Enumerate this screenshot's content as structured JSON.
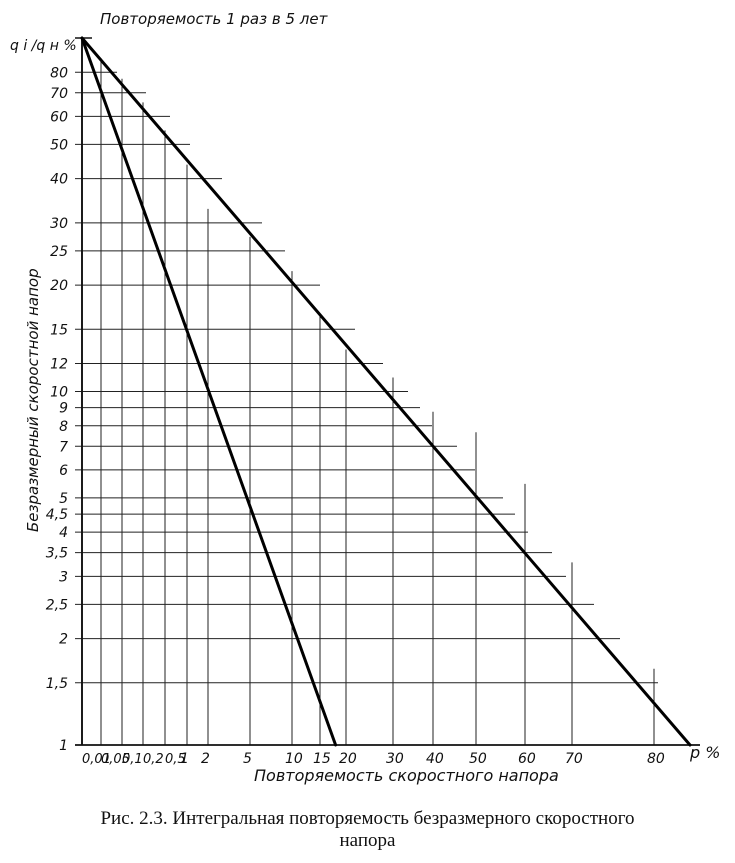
{
  "chart_data": {
    "type": "line",
    "top_label": "Повторяемость 1 раз в 5 лет",
    "ylabel": "Безразмерный скоростной напор",
    "ylabel_top": "q i /q н %",
    "xlabel": "Повторяемость скоростного напора",
    "xlabel_unit": "p %",
    "x_tick_labels": [
      "0,01",
      "0,05",
      "0,1",
      "0,2",
      "0,5",
      "1",
      "2",
      "5",
      "10",
      "15",
      "20",
      "30",
      "40",
      "50",
      "60",
      "70",
      "80"
    ],
    "x_tick_values": [
      0.01,
      0.05,
      0.1,
      0.2,
      0.5,
      1,
      2,
      5,
      10,
      15,
      20,
      30,
      40,
      50,
      60,
      70,
      80
    ],
    "y_tick_labels": [
      "1",
      "1,5",
      "2",
      "2,5",
      "3",
      "3,5",
      "4",
      "4,5",
      "5",
      "6",
      "7",
      "8",
      "9",
      "10",
      "12",
      "15",
      "20",
      "25",
      "30",
      "40",
      "50",
      "60",
      "70",
      "80"
    ],
    "y_tick_values": [
      1,
      1.5,
      2,
      2.5,
      3,
      3.5,
      4,
      4.5,
      5,
      6,
      7,
      8,
      9,
      10,
      12,
      15,
      20,
      25,
      30,
      40,
      50,
      60,
      70,
      80
    ],
    "y_top_value": 100,
    "xlim": [
      0.01,
      90
    ],
    "ylim": [
      1,
      100
    ],
    "y_scale": "log",
    "grid": true,
    "series": [
      {
        "points": [
          [
            0.01,
            100
          ],
          [
            18,
            1
          ]
        ]
      },
      {
        "points": [
          [
            0.01,
            100
          ],
          [
            88,
            1
          ]
        ]
      }
    ]
  },
  "caption": {
    "line1": "Рис. 2.3. Интегральная повторяемость безразмерного скоростного",
    "line2": "напора"
  }
}
